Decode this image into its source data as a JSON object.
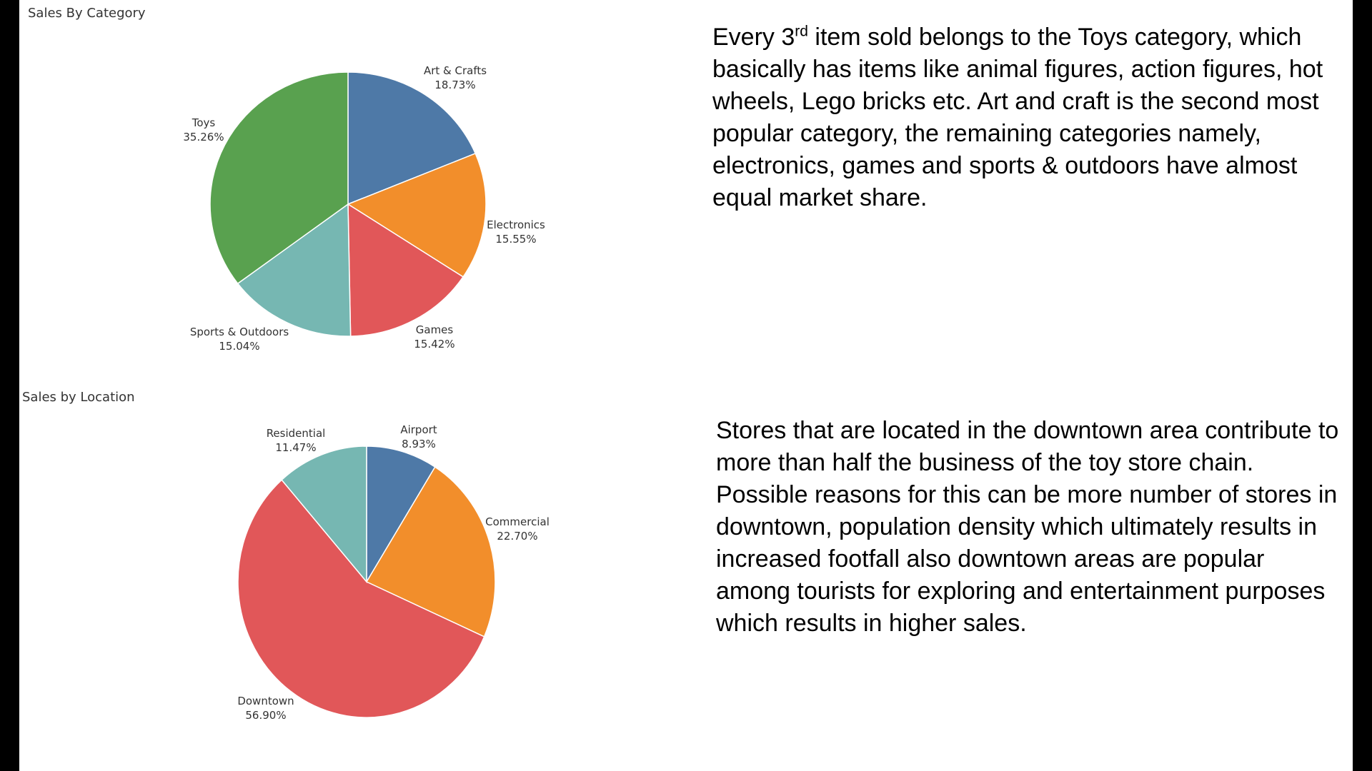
{
  "chart_data": [
    {
      "type": "pie",
      "title": "Sales By Category",
      "labels": [
        "Art & Crafts",
        "Electronics",
        "Games",
        "Sports & Outdoors",
        "Toys"
      ],
      "values": [
        18.73,
        15.55,
        15.42,
        15.04,
        35.26
      ],
      "value_labels": [
        "18.73%",
        "15.55%",
        "15.42%",
        "15.04%",
        "35.26%"
      ],
      "colors": [
        "#4E79A7",
        "#F28E2B",
        "#E15759",
        "#76B7B2",
        "#59A14F"
      ]
    },
    {
      "type": "pie",
      "title": "Sales by Location",
      "labels": [
        "Airport",
        "Commercial",
        "Downtown",
        "Residential"
      ],
      "values": [
        8.93,
        22.7,
        56.9,
        11.47
      ],
      "value_labels": [
        "8.93%",
        "22.70%",
        "56.90%",
        "11.47%"
      ],
      "colors": [
        "#4E79A7",
        "#F28E2B",
        "#E15759",
        "#76B7B2"
      ]
    }
  ],
  "notes": {
    "category": {
      "pre": "Every 3",
      "sup": "rd",
      "post": " item sold belongs to the Toys category, which basically has items like animal figures, action figures, hot wheels, Lego bricks etc.  Art and craft is the second most popular category, the remaining categories namely, electronics, games and sports & outdoors have almost equal market share."
    },
    "location": "Stores that are located in the downtown area contribute to more than half the business of the toy store chain. Possible reasons for this can be more number of stores in downtown, population density which ultimately results in increased footfall also downtown areas are popular among tourists for exploring and entertainment purposes which results in higher sales."
  }
}
